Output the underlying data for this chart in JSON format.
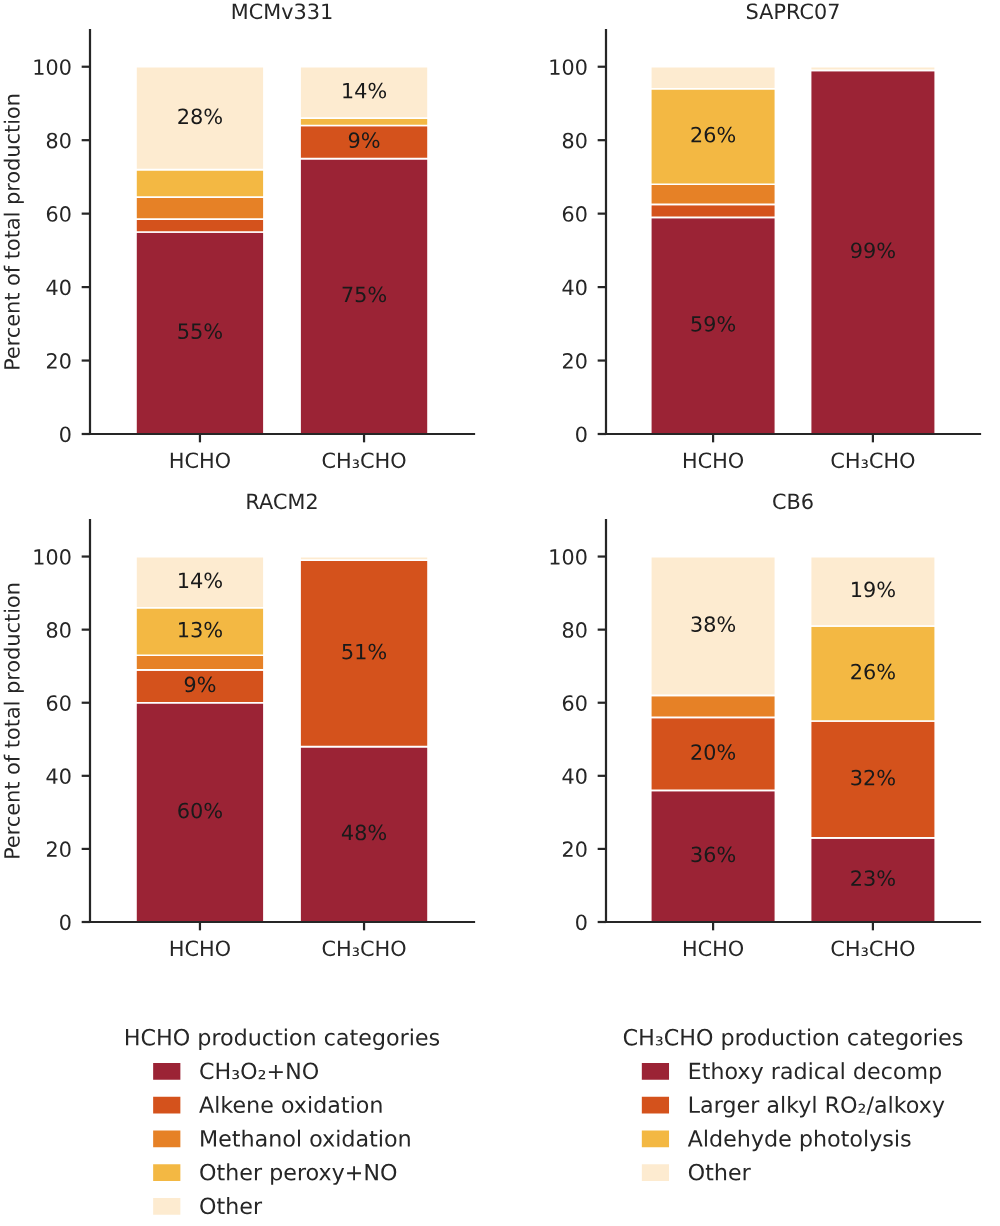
{
  "chart_data": [
    {
      "type": "bar",
      "title": "MCMv331",
      "ylabel": "Percent of total production",
      "categories": [
        "HCHO",
        "CH₃CHO"
      ],
      "stacked": true,
      "ylim": [
        0,
        110
      ],
      "yticks": [
        0,
        20,
        40,
        60,
        80,
        100
      ],
      "series": [
        {
          "color": "#9b2335",
          "values": [
            55,
            null
          ],
          "value_labels": [
            "55%",
            null
          ]
        },
        {
          "color": "#d4521c",
          "values": [
            3.5,
            null
          ]
        },
        {
          "color": "#e68126",
          "values": [
            6,
            null
          ]
        },
        {
          "color": "#f3b843",
          "values": [
            7.5,
            null
          ]
        },
        {
          "color": "#fdebd0",
          "values": [
            28,
            null
          ],
          "value_labels": [
            "28%",
            null
          ]
        },
        {
          "color": "#9b2335",
          "values": [
            null,
            75
          ],
          "value_labels": [
            null,
            "75%"
          ]
        },
        {
          "color": "#d4521c",
          "values": [
            null,
            9
          ],
          "value_labels": [
            null,
            "9%"
          ]
        },
        {
          "color": "#f3b843",
          "values": [
            null,
            2
          ]
        },
        {
          "color": "#fdebd0",
          "values": [
            null,
            14
          ],
          "value_labels": [
            null,
            "14%"
          ]
        }
      ]
    },
    {
      "type": "bar",
      "title": "SAPRC07",
      "categories": [
        "HCHO",
        "CH₃CHO"
      ],
      "stacked": true,
      "ylim": [
        0,
        110
      ],
      "yticks": [
        0,
        20,
        40,
        60,
        80,
        100
      ],
      "series": [
        {
          "color": "#9b2335",
          "values": [
            59,
            null
          ],
          "value_labels": [
            "59%",
            null
          ]
        },
        {
          "color": "#d4521c",
          "values": [
            3.5,
            null
          ]
        },
        {
          "color": "#e68126",
          "values": [
            5.5,
            null
          ]
        },
        {
          "color": "#f3b843",
          "values": [
            26,
            null
          ],
          "value_labels": [
            "26%",
            null
          ]
        },
        {
          "color": "#fdebd0",
          "values": [
            6,
            null
          ]
        },
        {
          "color": "#9b2335",
          "values": [
            null,
            99
          ],
          "value_labels": [
            null,
            "99%"
          ]
        },
        {
          "color": "#fdebd0",
          "values": [
            null,
            1
          ]
        }
      ]
    },
    {
      "type": "bar",
      "title": "RACM2",
      "ylabel": "Percent of total production",
      "categories": [
        "HCHO",
        "CH₃CHO"
      ],
      "stacked": true,
      "ylim": [
        0,
        110
      ],
      "yticks": [
        0,
        20,
        40,
        60,
        80,
        100
      ],
      "legend": "bottom",
      "legend_title": "HCHO production categories",
      "series": [
        {
          "name": "CH₃O₂+NO",
          "color": "#9b2335",
          "values": [
            60,
            null
          ],
          "value_labels": [
            "60%",
            null
          ]
        },
        {
          "name": "Alkene oxidation",
          "color": "#d4521c",
          "values": [
            9,
            null
          ],
          "value_labels": [
            "9%",
            null
          ]
        },
        {
          "name": "Methanol oxidation",
          "color": "#e68126",
          "values": [
            4,
            null
          ]
        },
        {
          "name": "Other peroxy+NO",
          "color": "#f3b843",
          "values": [
            13,
            null
          ],
          "value_labels": [
            "13%",
            null
          ]
        },
        {
          "name": "Other",
          "color": "#fdebd0",
          "values": [
            14,
            null
          ],
          "value_labels": [
            "14%",
            null
          ]
        },
        {
          "color": "#9b2335",
          "values": [
            null,
            48
          ],
          "value_labels": [
            null,
            "48%"
          ]
        },
        {
          "color": "#d4521c",
          "values": [
            null,
            51
          ],
          "value_labels": [
            null,
            "51%"
          ]
        },
        {
          "color": "#fdebd0",
          "values": [
            null,
            1
          ]
        }
      ]
    },
    {
      "type": "bar",
      "title": "CB6",
      "categories": [
        "HCHO",
        "CH₃CHO"
      ],
      "stacked": true,
      "ylim": [
        0,
        110
      ],
      "yticks": [
        0,
        20,
        40,
        60,
        80,
        100
      ],
      "legend": "bottom",
      "legend_title": "CH₃CHO production categories",
      "series": [
        {
          "color": "#9b2335",
          "values": [
            36,
            null
          ],
          "value_labels": [
            "36%",
            null
          ]
        },
        {
          "color": "#d4521c",
          "values": [
            20,
            null
          ],
          "value_labels": [
            "20%",
            null
          ]
        },
        {
          "color": "#e68126",
          "values": [
            6,
            null
          ]
        },
        {
          "color": "#fdebd0",
          "values": [
            38,
            null
          ],
          "value_labels": [
            "38%",
            null
          ]
        },
        {
          "name": "Ethoxy radical decomp",
          "color": "#9b2335",
          "values": [
            null,
            23
          ],
          "value_labels": [
            null,
            "23%"
          ]
        },
        {
          "name": "Larger alkyl RO₂/alkoxy",
          "color": "#d4521c",
          "values": [
            null,
            32
          ],
          "value_labels": [
            null,
            "32%"
          ]
        },
        {
          "name": "Aldehyde photolysis",
          "color": "#f3b843",
          "values": [
            null,
            26
          ],
          "value_labels": [
            null,
            "26%"
          ]
        },
        {
          "name": "Other",
          "color": "#fdebd0",
          "values": [
            null,
            19
          ],
          "value_labels": [
            null,
            "19%"
          ]
        }
      ]
    }
  ]
}
